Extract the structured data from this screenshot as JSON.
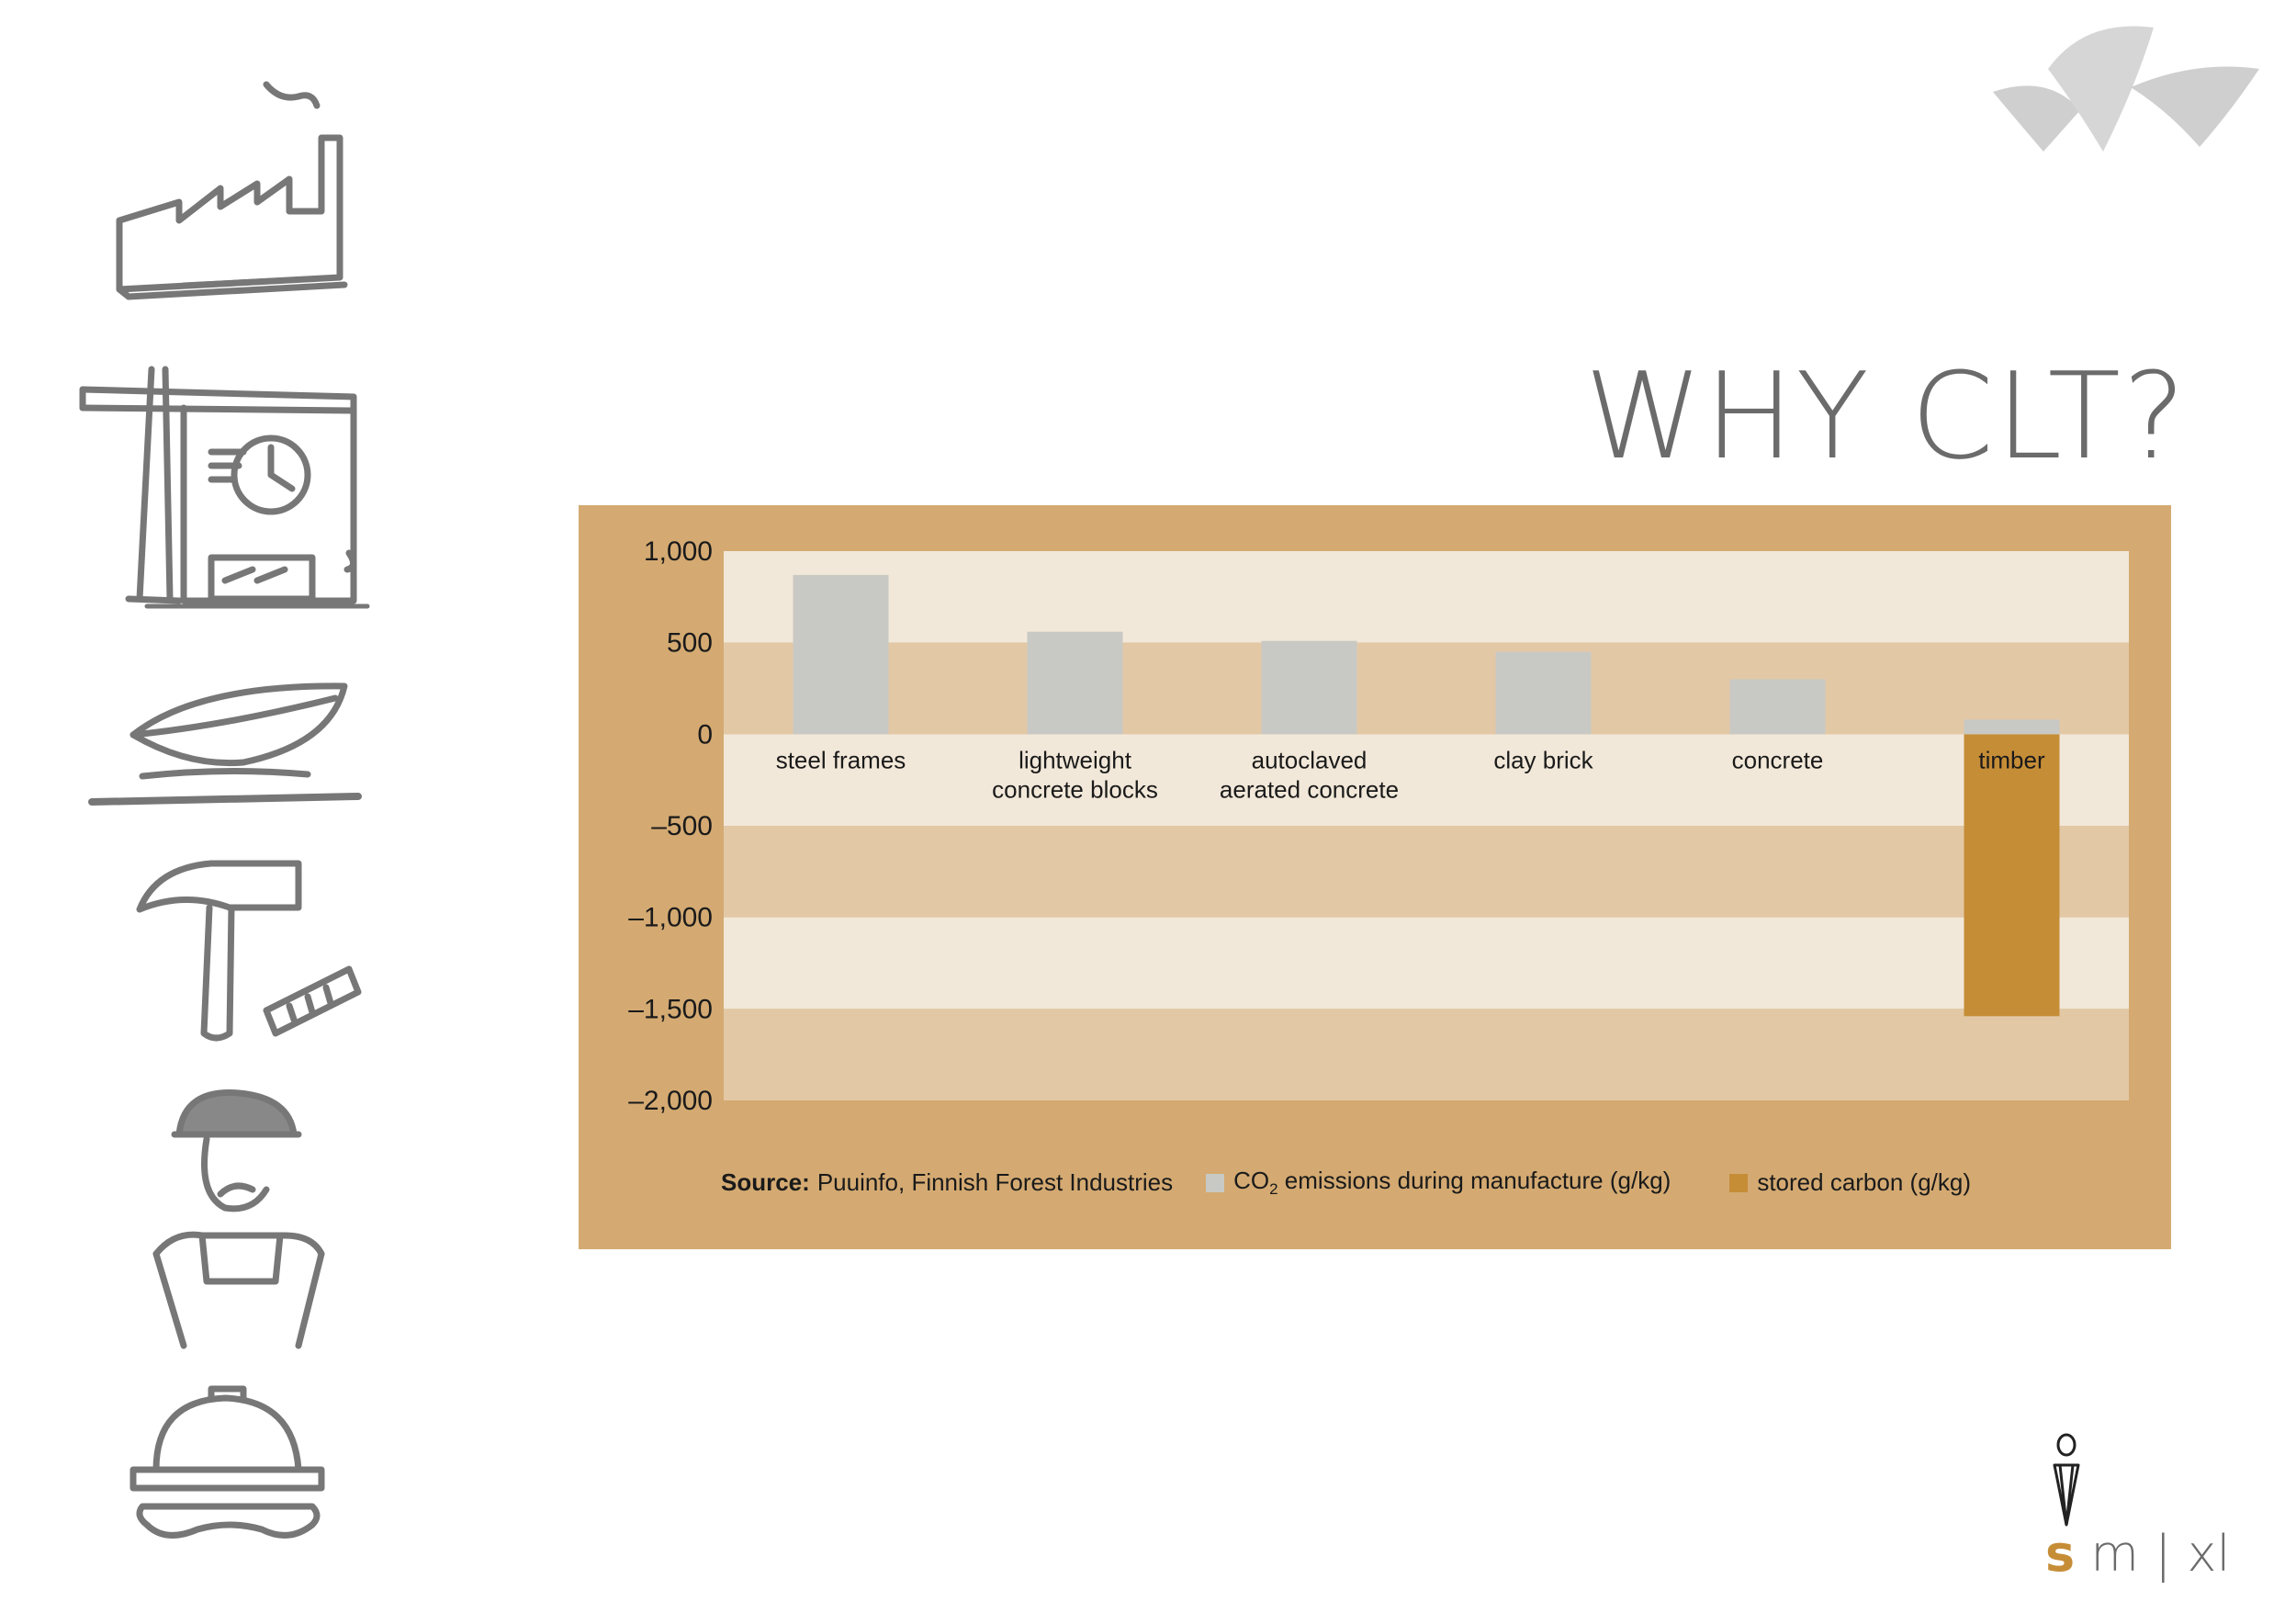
{
  "page": {
    "title": "WHY CLT?"
  },
  "side_icons": [
    "factory-icon",
    "crane-icon",
    "leaf-icon",
    "hammer-icon",
    "worker-icon",
    "hard-hat-icon"
  ],
  "brand": {
    "size_s": "s",
    "sep1": "|",
    "size_m": "m",
    "sep2": "|",
    "size_xl": "xl"
  },
  "colors": {
    "panel": "#d4aa72",
    "band_light": "#f2e8d9",
    "band_dark": "#e3c8a6",
    "emissions": "#c8c9c4",
    "stored": "#c68d37",
    "text_gray": "#6b6b6b"
  },
  "chart_data": {
    "type": "bar",
    "categories": [
      [
        "steel frames"
      ],
      [
        "lightweight",
        "concrete blocks"
      ],
      [
        "autoclaved",
        "aerated concrete"
      ],
      [
        "clay brick"
      ],
      [
        "concrete"
      ],
      [
        "timber"
      ]
    ],
    "series": [
      {
        "name": "CO₂ emissions during manufacture (g/kg)",
        "values": [
          870,
          560,
          510,
          450,
          300,
          80
        ]
      },
      {
        "name": "stored carbon (g/kg)",
        "values": [
          0,
          0,
          0,
          0,
          0,
          -1540
        ]
      }
    ],
    "yticks": [
      1000,
      500,
      0,
      -500,
      -1000,
      -1500,
      -2000
    ],
    "ytick_labels": [
      "1,000",
      "500",
      "0",
      "–500",
      "–1,000",
      "–1,500",
      "–2,000"
    ],
    "ylim": [
      -2000,
      1000
    ],
    "grid": "alternating horizontal bands",
    "legend": {
      "position": "bottom",
      "source_label": "Source:",
      "source_text": "Puuinfo, Finnish Forest Industries",
      "emissions_pre": "CO",
      "emissions_sub": "2",
      "emissions_post": " emissions during manufacture (g/kg)",
      "stored": "stored carbon (g/kg)"
    }
  }
}
